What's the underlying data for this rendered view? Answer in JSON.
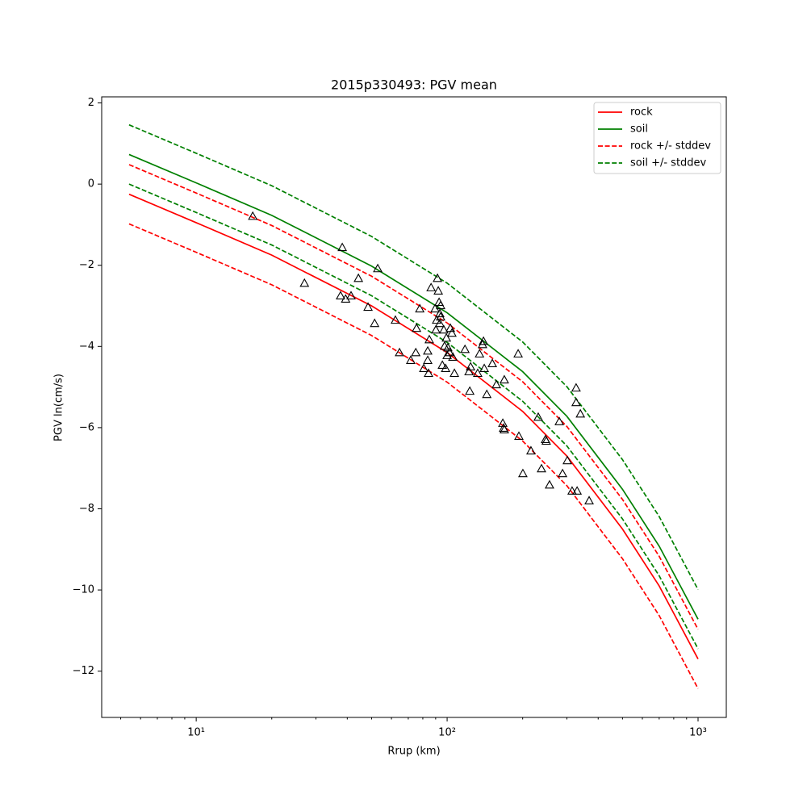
{
  "chart_data": {
    "type": "line",
    "title": "2015p330493: PGV mean",
    "xlabel": "Rrup (km)",
    "ylabel": "PGV ln(cm/s)",
    "xscale": "log",
    "xlim": [
      4.2,
      1296
    ],
    "ylim": [
      -13.14,
      2.15
    ],
    "xticks": [
      {
        "value": 10,
        "label": "10¹"
      },
      {
        "value": 100,
        "label": "10²"
      },
      {
        "value": 1000,
        "label": "10³"
      }
    ],
    "xminorticks": [
      5,
      6,
      7,
      8,
      9,
      20,
      30,
      40,
      50,
      60,
      70,
      80,
      90,
      200,
      300,
      400,
      500,
      600,
      700,
      800,
      900
    ],
    "yticks": [
      {
        "value": 2,
        "label": "2"
      },
      {
        "value": 0,
        "label": "0"
      },
      {
        "value": -2,
        "label": "−2"
      },
      {
        "value": -4,
        "label": "−4"
      },
      {
        "value": -6,
        "label": "−6"
      },
      {
        "value": -8,
        "label": "−8"
      },
      {
        "value": -10,
        "label": "−10"
      },
      {
        "value": -12,
        "label": "−12"
      }
    ],
    "legend": "upper right",
    "x": [
      5.4,
      10,
      20,
      50,
      100,
      200,
      300,
      500,
      700,
      1000
    ],
    "series": [
      {
        "name": "rock",
        "color": "#ff0000",
        "dashed": false,
        "lines": [
          [
            -0.25,
            -0.95,
            -1.75,
            -3.0,
            -4.15,
            -5.6,
            -6.7,
            -8.5,
            -9.9,
            -11.7
          ]
        ]
      },
      {
        "name": "soil",
        "color": "#008000",
        "dashed": false,
        "lines": [
          [
            0.73,
            0.03,
            -0.77,
            -2.02,
            -3.17,
            -4.62,
            -5.72,
            -7.52,
            -8.92,
            -10.72
          ]
        ]
      },
      {
        "name": "rock +/- stddev",
        "color": "#ff0000",
        "dashed": true,
        "lines": [
          [
            0.48,
            -0.22,
            -1.02,
            -2.27,
            -3.42,
            -4.87,
            -5.97,
            -7.77,
            -9.17,
            -10.97
          ],
          [
            -0.98,
            -1.68,
            -2.48,
            -3.73,
            -4.88,
            -6.33,
            -7.43,
            -9.23,
            -10.63,
            -12.43
          ]
        ]
      },
      {
        "name": "soil +/- stddev",
        "color": "#008000",
        "dashed": true,
        "lines": [
          [
            1.46,
            0.76,
            -0.04,
            -1.29,
            -2.44,
            -3.89,
            -4.99,
            -6.79,
            -8.19,
            -9.99
          ],
          [
            0.0,
            -0.7,
            -1.5,
            -2.75,
            -3.9,
            -5.35,
            -6.45,
            -8.25,
            -9.65,
            -11.45
          ]
        ]
      }
    ],
    "points": {
      "color": "#000000",
      "x": [
        16.8,
        27.0,
        38.2,
        37.6,
        39.4,
        41.4,
        44.3,
        48.4,
        51.4,
        52.9,
        62.2,
        64.6,
        71.6,
        75.0,
        75.5,
        77.8,
        80.7,
        83.7,
        83.7,
        84.3,
        84.9,
        86.3,
        89.5,
        90.2,
        90.8,
        91.5,
        92.2,
        92.9,
        93.5,
        93.5,
        94.2,
        94.2,
        95.7,
        97.0,
        97.7,
        98.6,
        99.3,
        100,
        100.7,
        102.3,
        103.0,
        104.5,
        105.4,
        106.9,
        117.8,
        122.2,
        123.1,
        124.0,
        132.4,
        134.6,
        138.4,
        139.6,
        140.6,
        143.9,
        151.4,
        157.1,
        166.7,
        167.9,
        169.0,
        169.0,
        191.9,
        193.2,
        200.4,
        215.8,
        230.7,
        237.7,
        246.6,
        248.3,
        255.9,
        279.9,
        288.4,
        301.3,
        314.8,
        326.6,
        326.6,
        329.6,
        339.6,
        368.1
      ],
      "y": [
        -0.8,
        -2.45,
        -1.57,
        -2.76,
        -2.84,
        -2.76,
        -2.33,
        -3.04,
        -3.44,
        -2.09,
        -3.36,
        -4.16,
        -4.35,
        -4.16,
        -3.56,
        -3.08,
        -4.55,
        -4.12,
        -4.35,
        -4.67,
        -3.84,
        -2.56,
        -3.08,
        -3.6,
        -3.36,
        -2.33,
        -2.64,
        -2.92,
        -3.2,
        -3.44,
        -3.0,
        -3.28,
        -4.47,
        -3.6,
        -4.0,
        -4.55,
        -3.8,
        -4.23,
        -4.04,
        -4.16,
        -3.56,
        -3.68,
        -4.27,
        -4.67,
        -4.08,
        -4.63,
        -5.11,
        -4.51,
        -4.67,
        -4.19,
        -3.96,
        -3.88,
        -4.55,
        -5.19,
        -4.43,
        -4.95,
        -5.9,
        -6.02,
        -6.06,
        -4.83,
        -4.19,
        -6.22,
        -7.14,
        -6.58,
        -5.75,
        -7.02,
        -6.3,
        -6.34,
        -7.42,
        -5.86,
        -7.14,
        -6.82,
        -7.57,
        -5.03,
        -5.39,
        -7.57,
        -5.67,
        -7.81
      ]
    }
  }
}
